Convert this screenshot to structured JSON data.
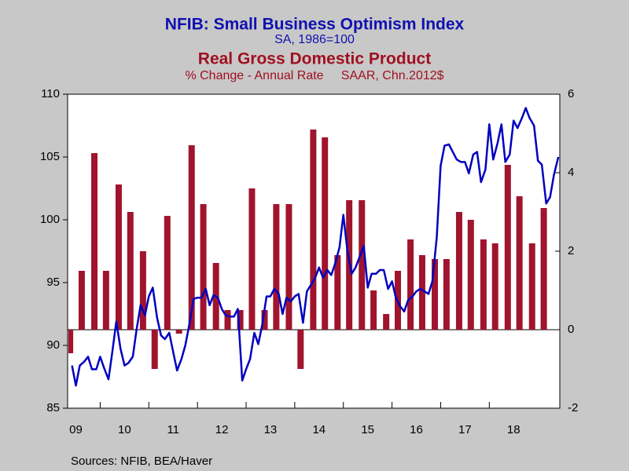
{
  "chart_data": {
    "type": "combo",
    "sources": "Sources:  NFIB, BEA/Haver",
    "xlim": [
      2009.33,
      2019.45
    ],
    "xticks": [
      {
        "value": 2009,
        "label": "09"
      },
      {
        "value": 2010,
        "label": "10"
      },
      {
        "value": 2011,
        "label": "11"
      },
      {
        "value": 2012,
        "label": "12"
      },
      {
        "value": 2013,
        "label": "13"
      },
      {
        "value": 2014,
        "label": "14"
      },
      {
        "value": 2015,
        "label": "15"
      },
      {
        "value": 2016,
        "label": "16"
      },
      {
        "value": 2017,
        "label": "17"
      },
      {
        "value": 2018,
        "label": "18"
      }
    ],
    "ylim": [
      85,
      110
    ],
    "yticks": [
      85,
      90,
      95,
      100,
      105,
      110
    ],
    "y2lim": [
      -2,
      6
    ],
    "y2ticks": [
      -2,
      0,
      2,
      4,
      6
    ],
    "series": [
      {
        "name": "NFIB: Small Business Optimism Index",
        "units": "SA, 1986=100",
        "type": "line",
        "color": "#0000c0",
        "x": [
          2009.42,
          2009.5,
          2009.58,
          2009.67,
          2009.75,
          2009.83,
          2009.92,
          2010,
          2010.08,
          2010.17,
          2010.25,
          2010.33,
          2010.42,
          2010.5,
          2010.58,
          2010.67,
          2010.75,
          2010.83,
          2010.92,
          2011,
          2011.08,
          2011.17,
          2011.25,
          2011.33,
          2011.42,
          2011.5,
          2011.58,
          2011.67,
          2011.75,
          2011.83,
          2011.92,
          2012,
          2012.08,
          2012.17,
          2012.25,
          2012.33,
          2012.42,
          2012.5,
          2012.58,
          2012.67,
          2012.75,
          2012.83,
          2012.92,
          2013,
          2013.08,
          2013.17,
          2013.25,
          2013.33,
          2013.42,
          2013.5,
          2013.58,
          2013.67,
          2013.75,
          2013.83,
          2013.92,
          2014,
          2014.08,
          2014.17,
          2014.25,
          2014.33,
          2014.42,
          2014.5,
          2014.58,
          2014.67,
          2014.75,
          2014.83,
          2014.92,
          2015,
          2015.08,
          2015.17,
          2015.25,
          2015.33,
          2015.42,
          2015.5,
          2015.58,
          2015.67,
          2015.75,
          2015.83,
          2015.92,
          2016,
          2016.08,
          2016.17,
          2016.25,
          2016.33,
          2016.42,
          2016.5,
          2016.58,
          2016.67,
          2016.75,
          2016.83,
          2016.92,
          2017,
          2017.08,
          2017.17,
          2017.25,
          2017.33,
          2017.42,
          2017.5,
          2017.58,
          2017.67,
          2017.75,
          2017.83,
          2017.92,
          2018,
          2018.08,
          2018.17,
          2018.25,
          2018.33,
          2018.42,
          2018.5,
          2018.58,
          2018.67,
          2018.75,
          2018.83,
          2018.92,
          2019,
          2019.08,
          2019.17,
          2019.25,
          2019.33,
          2019.42
        ],
        "values": [
          88.4,
          86.8,
          88.4,
          88.7,
          89.1,
          88.1,
          88.1,
          89.1,
          88.2,
          87.3,
          89.5,
          91.9,
          89.7,
          88.4,
          88.6,
          89.1,
          91.3,
          93.2,
          92.4,
          93.9,
          94.6,
          92.2,
          90.8,
          90.5,
          91.0,
          89.5,
          88.0,
          88.9,
          90.0,
          91.6,
          93.7,
          93.8,
          93.8,
          94.5,
          93.2,
          94.0,
          93.8,
          92.9,
          92.4,
          92.3,
          92.3,
          92.9,
          87.2,
          88.1,
          88.9,
          91.0,
          90.1,
          91.6,
          93.9,
          93.9,
          94.5,
          94.1,
          92.5,
          93.8,
          93.5,
          93.9,
          94.1,
          91.8,
          94.3,
          94.8,
          95.4,
          96.2,
          95.4,
          96.0,
          95.6,
          96.5,
          97.8,
          100.4,
          97.6,
          95.7,
          96.2,
          97.0,
          97.9,
          94.6,
          95.7,
          95.7,
          96.0,
          96.0,
          94.5,
          95.1,
          93.8,
          93.1,
          92.7,
          93.6,
          93.9,
          94.3,
          94.5,
          94.3,
          94.1,
          95.1,
          98.6,
          104.3,
          105.9,
          106.0,
          105.4,
          104.8,
          104.6,
          104.6,
          103.7,
          105.2,
          105.4,
          103.0,
          104.0,
          107.6,
          104.8,
          106.1,
          107.6,
          104.6,
          105.2,
          107.9,
          107.3,
          108.1,
          108.9,
          108.1,
          107.5,
          104.7,
          104.4,
          101.3,
          101.8,
          103.6,
          105.0
        ]
      },
      {
        "name": "Real Gross Domestic Product",
        "units": "% Change - Annual Rate     SAAR, Chn.2012$",
        "type": "bar",
        "axis": "y2",
        "color": "#a0142e",
        "x": [
          2009.38,
          2009.62,
          2009.88,
          2010.12,
          2010.38,
          2010.62,
          2010.88,
          2011.12,
          2011.38,
          2011.62,
          2011.88,
          2012.12,
          2012.38,
          2012.62,
          2012.88,
          2013.12,
          2013.38,
          2013.62,
          2013.88,
          2014.12,
          2014.38,
          2014.62,
          2014.88,
          2015.12,
          2015.38,
          2015.62,
          2015.88,
          2016.12,
          2016.38,
          2016.62,
          2016.88,
          2017.12,
          2017.38,
          2017.62,
          2017.88,
          2018.12,
          2018.38,
          2018.62,
          2018.88,
          2019.12
        ],
        "values": [
          -0.6,
          1.5,
          4.5,
          1.5,
          3.7,
          3.0,
          2.0,
          -1.0,
          2.9,
          -0.1,
          4.7,
          3.2,
          1.7,
          0.5,
          0.5,
          3.6,
          0.5,
          3.2,
          3.2,
          -1.0,
          5.1,
          4.9,
          1.9,
          3.3,
          3.3,
          1.0,
          0.4,
          1.5,
          2.3,
          1.9,
          1.8,
          1.8,
          3.0,
          2.8,
          2.3,
          2.2,
          4.2,
          3.4,
          2.2,
          3.1
        ]
      }
    ]
  }
}
